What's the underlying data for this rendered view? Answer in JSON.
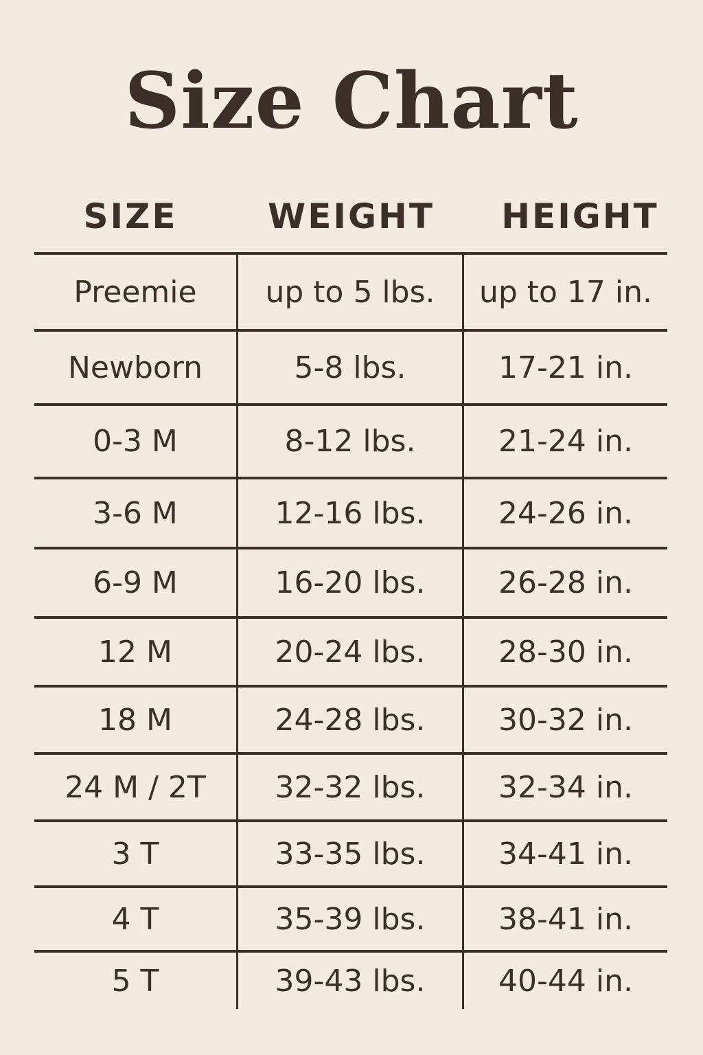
{
  "title": "Size Chart",
  "headers": [
    "SIZE",
    "WEIGHT",
    "HEIGHT"
  ],
  "rows": [
    [
      "Preemie",
      "up to 5 lbs.",
      "up to 17 in."
    ],
    [
      "Newborn",
      "5-8 lbs.",
      "17-21 in."
    ],
    [
      "0-3 M",
      "8-12 lbs.",
      "21-24 in."
    ],
    [
      "3-6 M",
      "12-16 lbs.",
      "24-26 in."
    ],
    [
      "6-9 M",
      "16-20 lbs.",
      "26-28 in."
    ],
    [
      "12 M",
      "20-24 lbs.",
      "28-30 in."
    ],
    [
      "18 M",
      "24-28 lbs.",
      "30-32 in."
    ],
    [
      "24 M / 2T",
      "32-32 lbs.",
      "32-34 in."
    ],
    [
      "3 T",
      "33-35 lbs.",
      "34-41 in."
    ],
    [
      "4 T",
      "35-39 lbs.",
      "38-41 in."
    ],
    [
      "5 T",
      "39-43 lbs.",
      "40-44 in."
    ]
  ],
  "colors": {
    "background": "#f3ebe0",
    "text": "#3b2f27"
  }
}
